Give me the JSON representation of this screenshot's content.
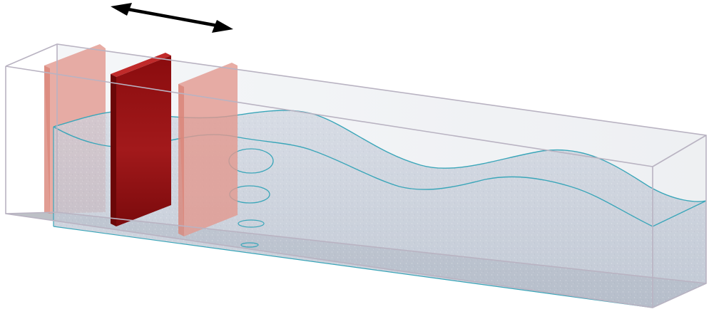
{
  "figure": {
    "arrow_icon": "double-headed-arrow-icon",
    "paddles": {
      "count": 3,
      "active_index": 1
    },
    "colors": {
      "background": "#ffffff",
      "tank_edge": "#b9b3c2",
      "water_line": "#3aa6b9",
      "paddle_active": "#8f0f10",
      "paddle_ghost": "#e2998f",
      "arrow": "#000000"
    }
  }
}
